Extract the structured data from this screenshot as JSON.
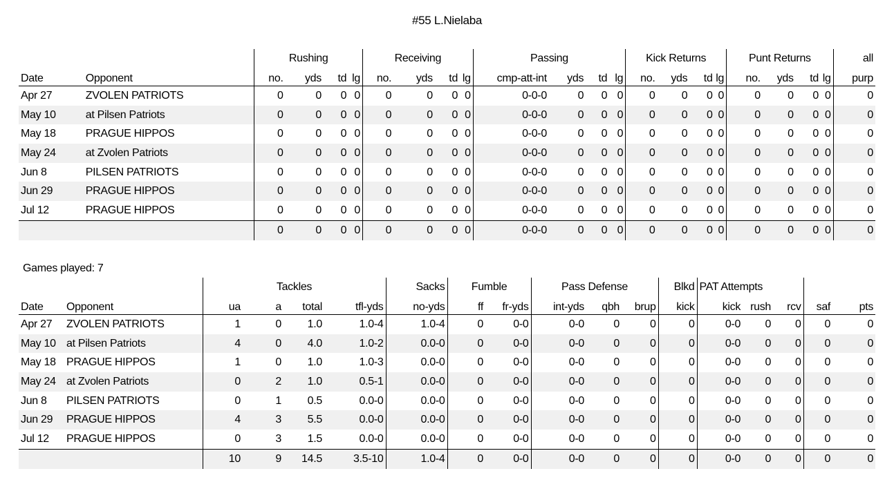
{
  "title": "#55 L.Nielaba",
  "games_played": "Games played: 7",
  "offense": {
    "groups": [
      "Rushing",
      "Receiving",
      "Passing",
      "Kick Returns",
      "Punt Returns",
      "all"
    ],
    "headers": [
      "Date",
      "Opponent",
      "no.",
      "yds",
      "td",
      "lg",
      "no.",
      "yds",
      "td",
      "lg",
      "cmp-att-int",
      "yds",
      "td",
      "lg",
      "no.",
      "yds",
      "td",
      "lg",
      "no.",
      "yds",
      "td",
      "lg",
      "purp"
    ],
    "rows": [
      [
        "Apr 27",
        "ZVOLEN PATRIOTS",
        "0",
        "0",
        "0",
        "0",
        "0",
        "0",
        "0",
        "0",
        "0-0-0",
        "0",
        "0",
        "0",
        "0",
        "0",
        "0",
        "0",
        "0",
        "0",
        "0",
        "0",
        "0"
      ],
      [
        "May 10",
        "at Pilsen Patriots",
        "0",
        "0",
        "0",
        "0",
        "0",
        "0",
        "0",
        "0",
        "0-0-0",
        "0",
        "0",
        "0",
        "0",
        "0",
        "0",
        "0",
        "0",
        "0",
        "0",
        "0",
        "0"
      ],
      [
        "May 18",
        "PRAGUE HIPPOS",
        "0",
        "0",
        "0",
        "0",
        "0",
        "0",
        "0",
        "0",
        "0-0-0",
        "0",
        "0",
        "0",
        "0",
        "0",
        "0",
        "0",
        "0",
        "0",
        "0",
        "0",
        "0"
      ],
      [
        "May 24",
        "at Zvolen Patriots",
        "0",
        "0",
        "0",
        "0",
        "0",
        "0",
        "0",
        "0",
        "0-0-0",
        "0",
        "0",
        "0",
        "0",
        "0",
        "0",
        "0",
        "0",
        "0",
        "0",
        "0",
        "0"
      ],
      [
        "Jun 8",
        "PILSEN PATRIOTS",
        "0",
        "0",
        "0",
        "0",
        "0",
        "0",
        "0",
        "0",
        "0-0-0",
        "0",
        "0",
        "0",
        "0",
        "0",
        "0",
        "0",
        "0",
        "0",
        "0",
        "0",
        "0"
      ],
      [
        "Jun 29",
        "PRAGUE HIPPOS",
        "0",
        "0",
        "0",
        "0",
        "0",
        "0",
        "0",
        "0",
        "0-0-0",
        "0",
        "0",
        "0",
        "0",
        "0",
        "0",
        "0",
        "0",
        "0",
        "0",
        "0",
        "0"
      ],
      [
        "Jul 12",
        "PRAGUE HIPPOS",
        "0",
        "0",
        "0",
        "0",
        "0",
        "0",
        "0",
        "0",
        "0-0-0",
        "0",
        "0",
        "0",
        "0",
        "0",
        "0",
        "0",
        "0",
        "0",
        "0",
        "0",
        "0"
      ]
    ],
    "totals": [
      "",
      "",
      "0",
      "0",
      "0",
      "0",
      "0",
      "0",
      "0",
      "0",
      "0-0-0",
      "0",
      "0",
      "0",
      "0",
      "0",
      "0",
      "0",
      "0",
      "0",
      "0",
      "0",
      "0"
    ]
  },
  "defense": {
    "groups": [
      "Tackles",
      "Sacks",
      "Fumble",
      "Pass Defense",
      "Blkd",
      "PAT Attempts"
    ],
    "headers": [
      "Date",
      "Opponent",
      "ua",
      "a",
      "total",
      "tfl-yds",
      "no-yds",
      "ff",
      "fr-yds",
      "int-yds",
      "qbh",
      "brup",
      "kick",
      "kick",
      "rush",
      "rcv",
      "saf",
      "pts"
    ],
    "rows": [
      [
        "Apr 27",
        "ZVOLEN PATRIOTS",
        "1",
        "0",
        "1.0",
        "1.0-4",
        "1.0-4",
        "0",
        "0-0",
        "0-0",
        "0",
        "0",
        "0",
        "0-0",
        "0",
        "0",
        "0",
        "0"
      ],
      [
        "May 10",
        "at Pilsen Patriots",
        "4",
        "0",
        "4.0",
        "1.0-2",
        "0.0-0",
        "0",
        "0-0",
        "0-0",
        "0",
        "0",
        "0",
        "0-0",
        "0",
        "0",
        "0",
        "0"
      ],
      [
        "May 18",
        "PRAGUE HIPPOS",
        "1",
        "0",
        "1.0",
        "1.0-3",
        "0.0-0",
        "0",
        "0-0",
        "0-0",
        "0",
        "0",
        "0",
        "0-0",
        "0",
        "0",
        "0",
        "0"
      ],
      [
        "May 24",
        "at Zvolen Patriots",
        "0",
        "2",
        "1.0",
        "0.5-1",
        "0.0-0",
        "0",
        "0-0",
        "0-0",
        "0",
        "0",
        "0",
        "0-0",
        "0",
        "0",
        "0",
        "0"
      ],
      [
        "Jun 8",
        "PILSEN PATRIOTS",
        "0",
        "1",
        "0.5",
        "0.0-0",
        "0.0-0",
        "0",
        "0-0",
        "0-0",
        "0",
        "0",
        "0",
        "0-0",
        "0",
        "0",
        "0",
        "0"
      ],
      [
        "Jun 29",
        "PRAGUE HIPPOS",
        "4",
        "3",
        "5.5",
        "0.0-0",
        "0.0-0",
        "0",
        "0-0",
        "0-0",
        "0",
        "0",
        "0",
        "0-0",
        "0",
        "0",
        "0",
        "0"
      ],
      [
        "Jul 12",
        "PRAGUE HIPPOS",
        "0",
        "3",
        "1.5",
        "0.0-0",
        "0.0-0",
        "0",
        "0-0",
        "0-0",
        "0",
        "0",
        "0",
        "0-0",
        "0",
        "0",
        "0",
        "0"
      ]
    ],
    "totals": [
      "",
      "",
      "10",
      "9",
      "14.5",
      "3.5-10",
      "1.0-4",
      "0",
      "0-0",
      "0-0",
      "0",
      "0",
      "0",
      "0-0",
      "0",
      "0",
      "0",
      "0"
    ]
  },
  "colors": {
    "row_shade": "#f0f0f0",
    "rule": "#000000"
  }
}
